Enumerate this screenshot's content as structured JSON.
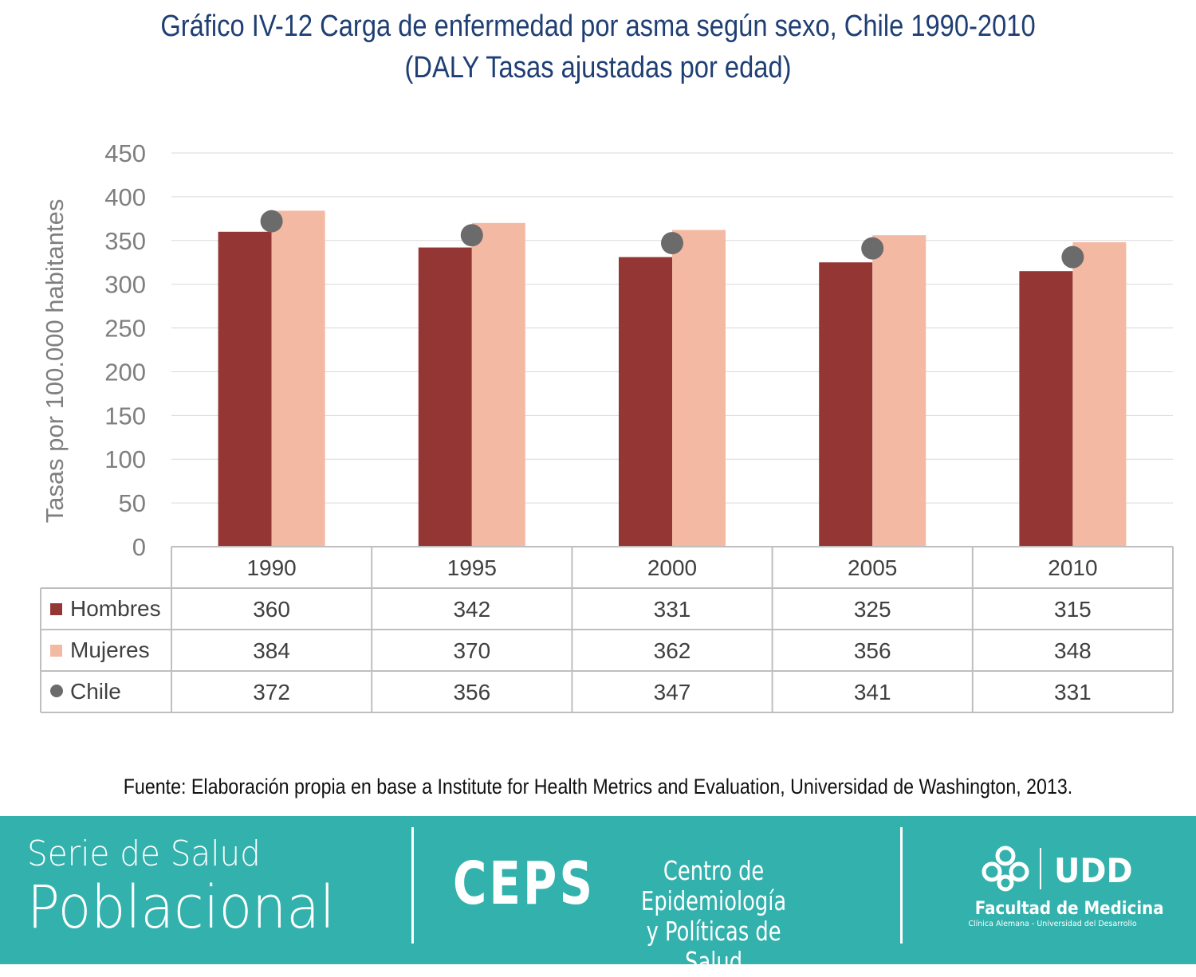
{
  "chart_data": {
    "type": "bar",
    "title": "Gráfico IV-12 Carga de enfermedad por asma según sexo, Chile 1990-2010",
    "subtitle": "(DALY Tasas ajustadas por edad)",
    "ylabel": "Tasas por 100.000 habitantes",
    "xlabel": "",
    "ylim": [
      0,
      450
    ],
    "yticks": [
      "0",
      "50",
      "100",
      "150",
      "200",
      "250",
      "300",
      "350",
      "400",
      "450"
    ],
    "categories": [
      "1990",
      "1995",
      "2000",
      "2005",
      "2010"
    ],
    "series": [
      {
        "name": "Hombres",
        "kind": "bar",
        "color": "#943634",
        "values": [
          360,
          342,
          331,
          325,
          315
        ]
      },
      {
        "name": "Mujeres",
        "kind": "bar",
        "color": "#f4b9a3",
        "values": [
          384,
          370,
          362,
          356,
          348
        ]
      },
      {
        "name": "Chile",
        "kind": "marker",
        "color": "#6b6b6b",
        "values": [
          372,
          356,
          347,
          341,
          331
        ]
      }
    ],
    "grid": true,
    "legend": "data table below chart",
    "data_table": true
  },
  "source": "Fuente: Elaboración propia en base a Institute for Health Metrics and Evaluation, Universidad de Washington, 2013.",
  "footer": {
    "serie_line1": "Serie de Salud",
    "serie_line2": "Poblacional",
    "ceps": "CEPS",
    "centro_line1": "Centro de Epidemiología",
    "centro_line2": "y Políticas de Salud",
    "udd": "UDD",
    "facultad": "Facultad de Medicina",
    "clinica": "Clínica Alemana - Universidad del Desarrollo",
    "background": "#33b1ad"
  }
}
